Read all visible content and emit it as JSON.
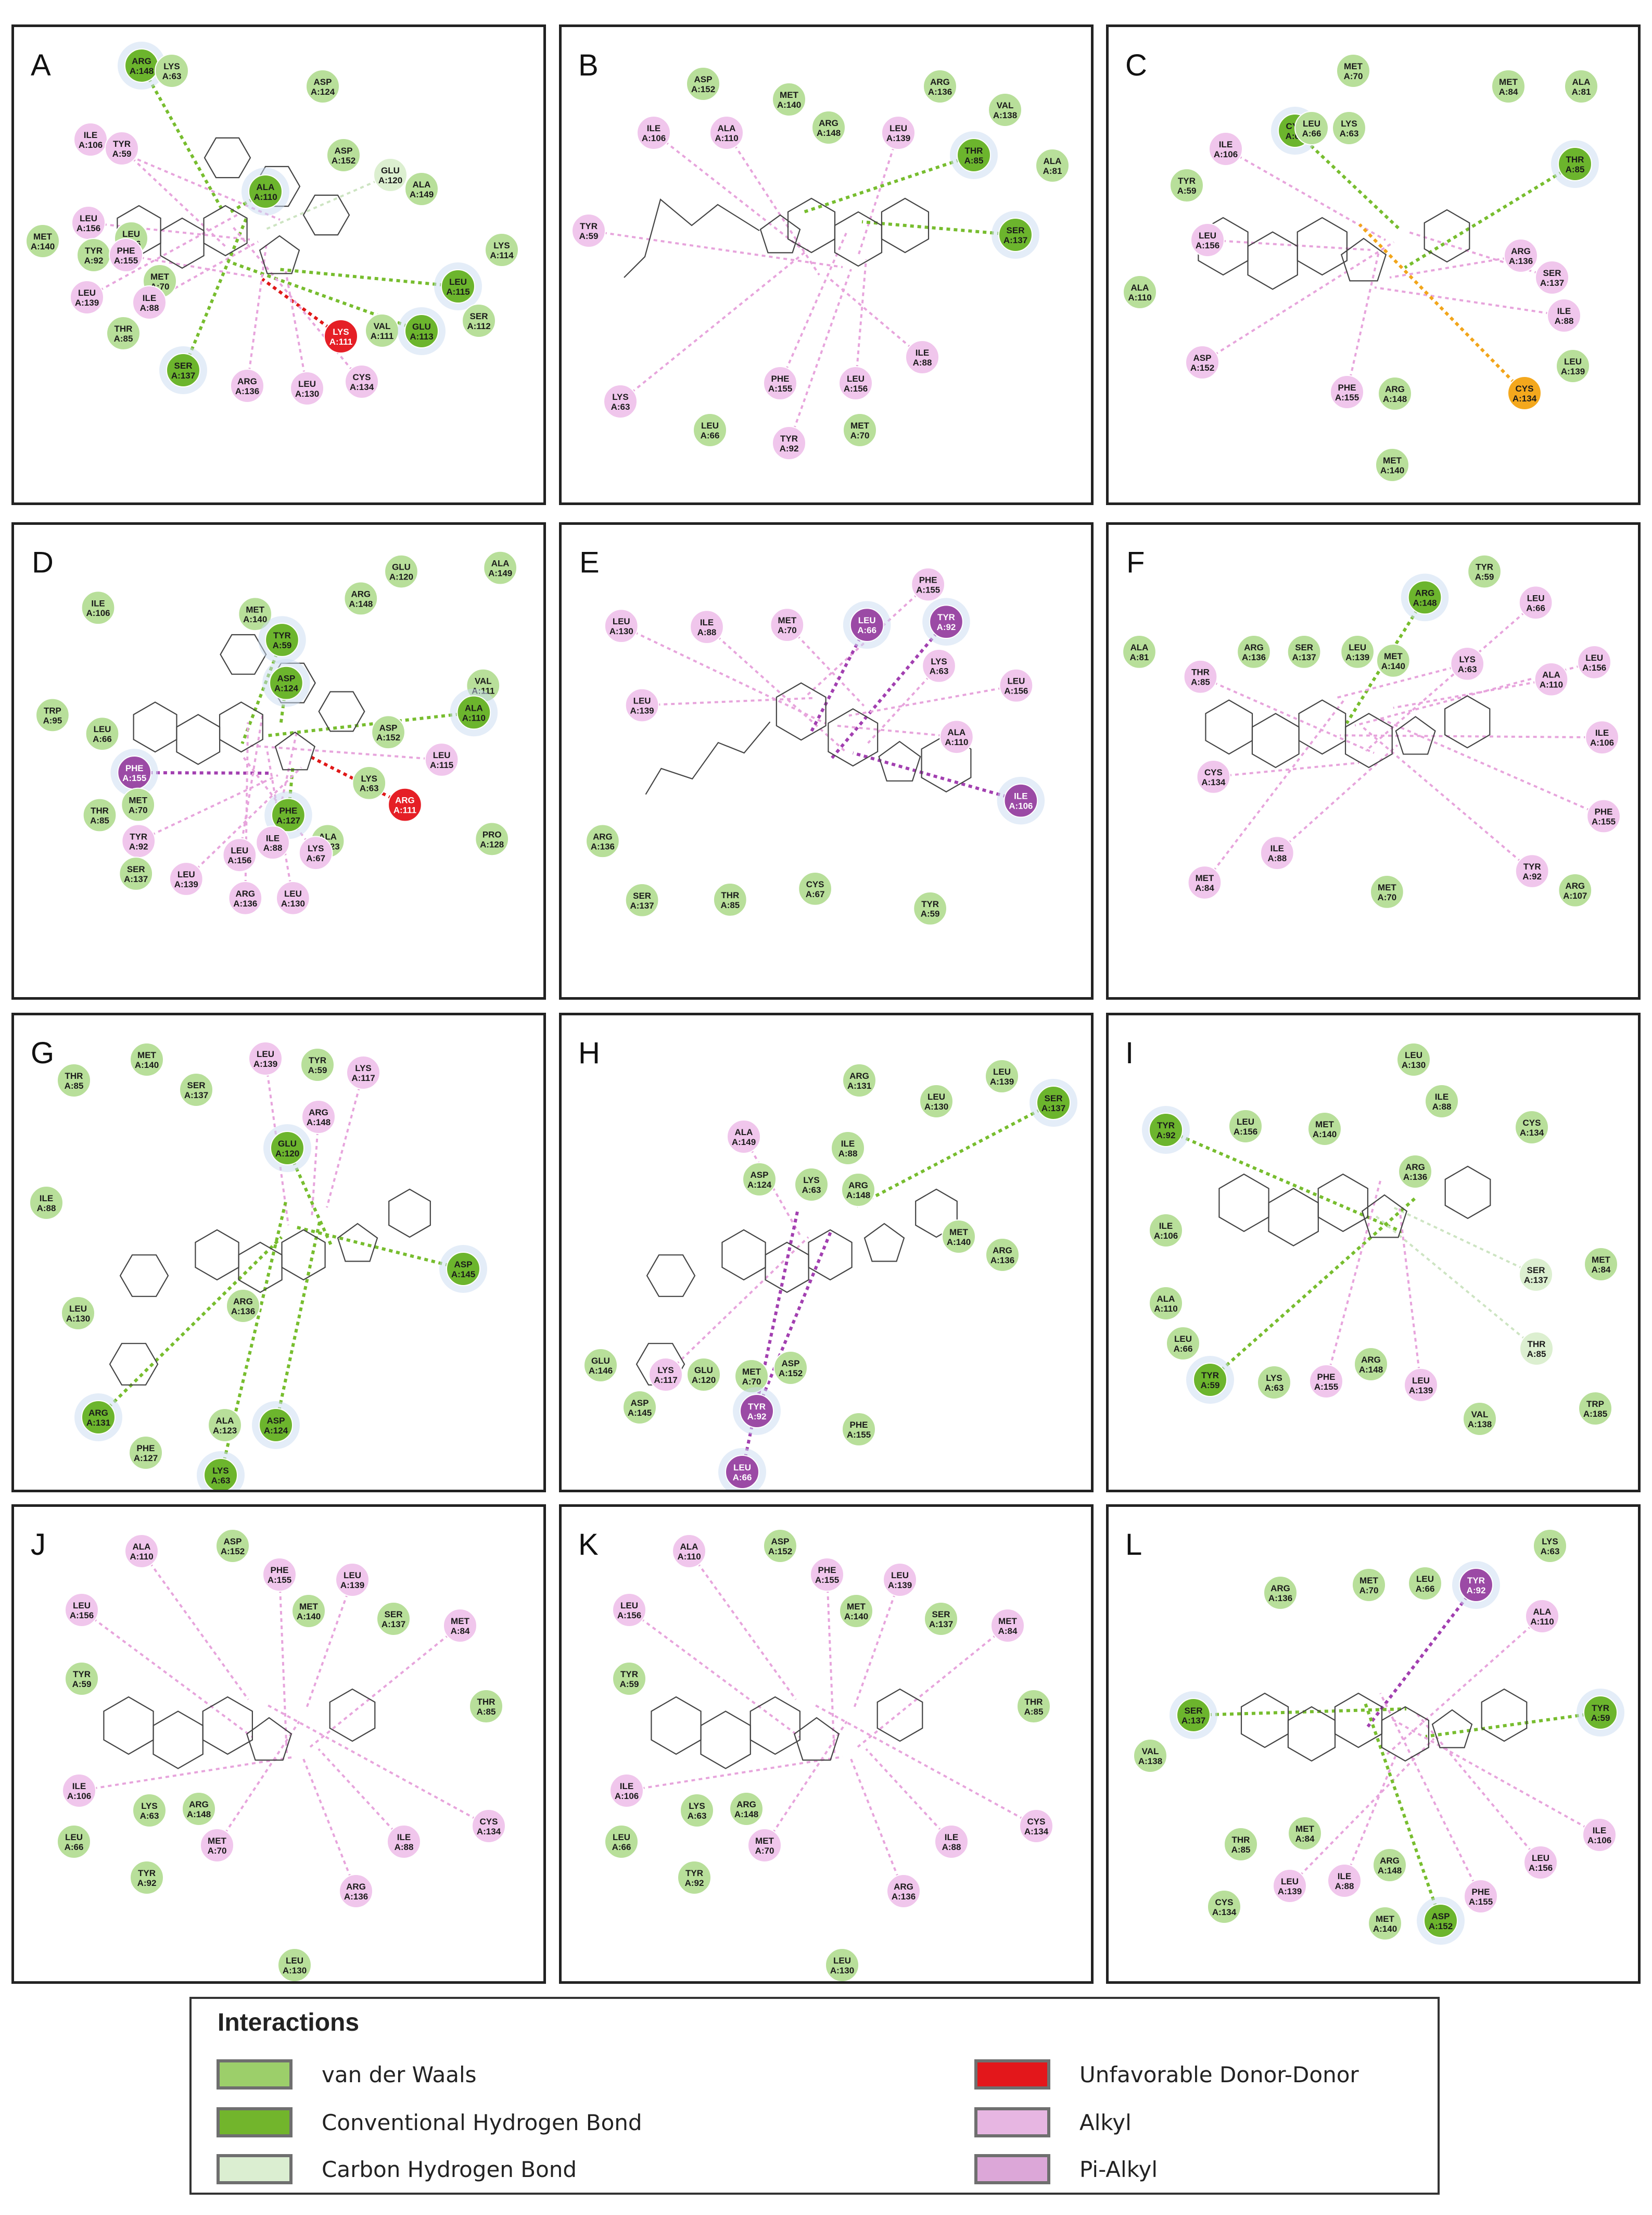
{
  "panels": [
    {
      "label": "A",
      "residues": [
        "ARG A:148",
        "LYS A:63",
        "ASP A:124",
        "ILE A:106",
        "TYR A:59",
        "ASP A:152",
        "GLU A:120",
        "ALA A:149",
        "ALA A:110",
        "LEU A:156",
        "LEU A:66",
        "MET A:140",
        "TYR A:92",
        "PHE A:155",
        "LYS A:114",
        "MET A:70",
        "LEU A:139",
        "ILE A:88",
        "LEU A:115",
        "SER A:112",
        "THR A:85",
        "LYS A:111",
        "VAL A:111",
        "GLU A:113",
        "SER A:137",
        "ARG A:136",
        "LEU A:130",
        "CYS A:134"
      ]
    },
    {
      "label": "B",
      "residues": [
        "ASP A:152",
        "ARG A:136",
        "MET A:140",
        "VAL A:138",
        "ILE A:106",
        "ALA A:110",
        "ARG A:148",
        "LEU A:139",
        "THR A:85",
        "ALA A:81",
        "TYR A:59",
        "SER A:137",
        "LYS A:63",
        "ILE A:88",
        "PHE A:155",
        "LEU A:156",
        "LEU A:66",
        "MET A:70",
        "TYR A:92"
      ]
    },
    {
      "label": "C",
      "residues": [
        "MET A:70",
        "MET A:84",
        "ALA A:81",
        "CYS A:67",
        "LYS A:63",
        "LEU A:66",
        "ILE A:106",
        "THR A:85",
        "TYR A:59",
        "LEU A:156",
        "ARG A:136",
        "SER A:137",
        "ALA A:110",
        "ILE A:88",
        "ASP A:152",
        "LEU A:139",
        "CYS A:134",
        "PHE A:155",
        "ARG A:148",
        "MET A:140"
      ]
    },
    {
      "label": "D",
      "residues": [
        "GLU A:120",
        "ALA A:149",
        "ARG A:148",
        "MET A:140",
        "TYR A:59",
        "ILE A:106",
        "ASP A:124",
        "VAL A:111",
        "TRP A:95",
        "ALA A:110",
        "LEU A:66",
        "ASP A:152",
        "LEU A:115",
        "PHE A:155",
        "LYS A:63",
        "ARG A:111",
        "THR A:85",
        "MET A:70",
        "PHE A:127",
        "ALA A:123",
        "PRO A:128",
        "TYR A:92",
        "ILE A:88",
        "LYS A:67",
        "LEU A:156",
        "SER A:137",
        "LEU A:139",
        "ARG A:136",
        "LEU A:130"
      ]
    },
    {
      "label": "E",
      "residues": [
        "PHE A:155",
        "LEU A:130",
        "ILE A:88",
        "MET A:70",
        "LEU A:66",
        "TYR A:92",
        "LEU A:156",
        "LYS A:63",
        "LEU A:139",
        "ALA A:110",
        "ILE A:106",
        "ARG A:136",
        "SER A:137",
        "THR A:85",
        "CYS A:67",
        "TYR A:59"
      ]
    },
    {
      "label": "F",
      "residues": [
        "TYR A:59",
        "ARG A:148",
        "LEU A:66",
        "ALA A:81",
        "ARG A:136",
        "SER A:137",
        "LEU A:139",
        "MET A:140",
        "LYS A:63",
        "LEU A:156",
        "THR A:85",
        "ALA A:110",
        "ILE A:106",
        "CYS A:134",
        "PHE A:155",
        "ILE A:88",
        "MET A:84",
        "TYR A:92",
        "MET A:70",
        "ARG A:107"
      ]
    },
    {
      "label": "G",
      "residues": [
        "MET A:140",
        "LEU A:139",
        "TYR A:59",
        "LYS A:117",
        "THR A:85",
        "SER A:137",
        "ARG A:148",
        "GLU A:120",
        "ILE A:88",
        "ASP A:145",
        "ARG A:136",
        "LEU A:130",
        "ARG A:131",
        "ALA A:123",
        "ASP A:124",
        "PHE A:127",
        "LYS A:63"
      ]
    },
    {
      "label": "H",
      "residues": [
        "ARG A:131",
        "LEU A:139",
        "LEU A:130",
        "SER A:137",
        "ALA A:149",
        "ILE A:88",
        "ASP A:124",
        "LYS A:63",
        "ARG A:148",
        "MET A:140",
        "ARG A:136",
        "GLU A:146",
        "LYS A:117",
        "GLU A:120",
        "MET A:70",
        "ASP A:152",
        "ASP A:145",
        "TYR A:92",
        "PHE A:155",
        "LEU A:66"
      ]
    },
    {
      "label": "I",
      "residues": [
        "LEU A:130",
        "ILE A:88",
        "TYR A:92",
        "LEU A:156",
        "MET A:140",
        "CYS A:134",
        "ARG A:136",
        "ILE A:106",
        "MET A:84",
        "SER A:137",
        "ALA A:110",
        "LEU A:66",
        "THR A:85",
        "ARG A:148",
        "TYR A:59",
        "LYS A:63",
        "PHE A:155",
        "LEU A:139",
        "TRP A:185",
        "VAL A:138"
      ]
    },
    {
      "label": "J",
      "residues": [
        "ALA A:110",
        "ASP A:152",
        "PHE A:155",
        "LEU A:139",
        "LEU A:156",
        "MET A:140",
        "SER A:137",
        "MET A:84",
        "TYR A:59",
        "THR A:85",
        "ILE A:106",
        "LYS A:63",
        "ARG A:148",
        "LEU A:66",
        "MET A:70",
        "ILE A:88",
        "CYS A:134",
        "TYR A:92",
        "ARG A:136",
        "LEU A:130"
      ]
    },
    {
      "label": "K",
      "residues": [
        "ALA A:110",
        "ASP A:152",
        "PHE A:155",
        "LEU A:139",
        "LEU A:156",
        "MET A:140",
        "SER A:137",
        "MET A:84",
        "TYR A:59",
        "THR A:85",
        "ILE A:106",
        "LYS A:63",
        "ARG A:148",
        "LEU A:66",
        "MET A:70",
        "ILE A:88",
        "CYS A:134",
        "TYR A:92",
        "ARG A:136",
        "LEU A:130"
      ]
    },
    {
      "label": "L",
      "residues": [
        "LYS A:63",
        "ARG A:136",
        "MET A:70",
        "LEU A:66",
        "TYR A:92",
        "ALA A:110",
        "SER A:137",
        "TYR A:59",
        "VAL A:138",
        "ILE A:106",
        "THR A:85",
        "MET A:84",
        "ARG A:148",
        "ILE A:88",
        "LEU A:156",
        "LEU A:139",
        "PHE A:155",
        "CYS A:134",
        "MET A:140",
        "ASP A:152"
      ]
    }
  ],
  "legend": {
    "title": "Interactions",
    "items": [
      {
        "label": "van der Waals",
        "color": "#9ccf6a"
      },
      {
        "label": "Unfavorable Donor-Donor",
        "color": "#e3171b"
      },
      {
        "label": "Conventional Hydrogen Bond",
        "color": "#72b52c"
      },
      {
        "label": "Alkyl",
        "color": "#e7b6e2"
      },
      {
        "label": "Carbon Hydrogen Bond",
        "color": "#dbeed1"
      },
      {
        "label": "Pi-Alkyl",
        "color": "#dca7d8"
      }
    ]
  },
  "colors": {
    "vdw_fill": "#b8df9a",
    "hbond_fill": "#6cb52d",
    "alkyl_fill": "#f0c6ec",
    "pi_fill": "#9b4aa5",
    "donor_fill": "#e51f26",
    "sulfur_fill": "#f4a81d",
    "glow": "#c9dcf2",
    "bond_line": "#444444"
  }
}
